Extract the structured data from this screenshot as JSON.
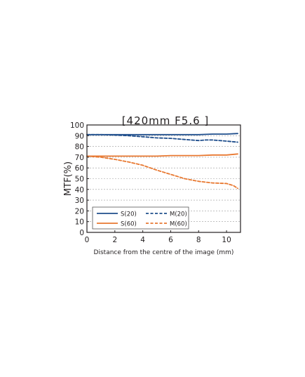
{
  "chart_data": {
    "type": "line",
    "title": "[420mm F5.6 ]",
    "xlabel": "Distance from the centre of the image (mm)",
    "ylabel": "MTF(%)",
    "xlim": [
      0,
      11
    ],
    "ylim": [
      0,
      100
    ],
    "xticks": [
      0,
      2,
      4,
      6,
      8,
      10
    ],
    "yticks": [
      0,
      10,
      20,
      30,
      40,
      50,
      60,
      70,
      80,
      90,
      100
    ],
    "grid": "horizontal dashed",
    "legend_position": "bottom-left",
    "series": [
      {
        "name": "S(20)",
        "color": "#1f4e8c",
        "style": "solid",
        "x": [
          0,
          1,
          2,
          3,
          4,
          5,
          6,
          7,
          8,
          9,
          10,
          10.8
        ],
        "y": [
          91,
          91,
          91,
          91,
          91,
          91,
          91,
          91,
          91,
          91.5,
          91.5,
          92
        ]
      },
      {
        "name": "M(20)",
        "color": "#1f4e8c",
        "style": "dashed",
        "x": [
          0,
          1,
          2,
          3,
          4,
          5,
          6,
          7,
          8,
          8.5,
          9,
          10,
          10.8
        ],
        "y": [
          91,
          91,
          90.5,
          90,
          89,
          88,
          87.5,
          86.5,
          85.5,
          86,
          86,
          85,
          84
        ]
      },
      {
        "name": "S(60)",
        "color": "#e87830",
        "style": "solid",
        "x": [
          0,
          1,
          2,
          3,
          4,
          5,
          6,
          7,
          8,
          9,
          10,
          10.8
        ],
        "y": [
          71,
          71,
          71,
          71,
          71,
          71,
          71.5,
          71.5,
          71.5,
          72,
          72,
          73
        ]
      },
      {
        "name": "M(60)",
        "color": "#e87830",
        "style": "dashed",
        "x": [
          0,
          1,
          2,
          3,
          4,
          5,
          6,
          7,
          8,
          9,
          10,
          10.5,
          10.8
        ],
        "y": [
          71,
          70,
          68,
          65.5,
          62.5,
          58,
          54,
          50,
          47.5,
          46,
          45.5,
          43.5,
          41
        ]
      }
    ]
  }
}
